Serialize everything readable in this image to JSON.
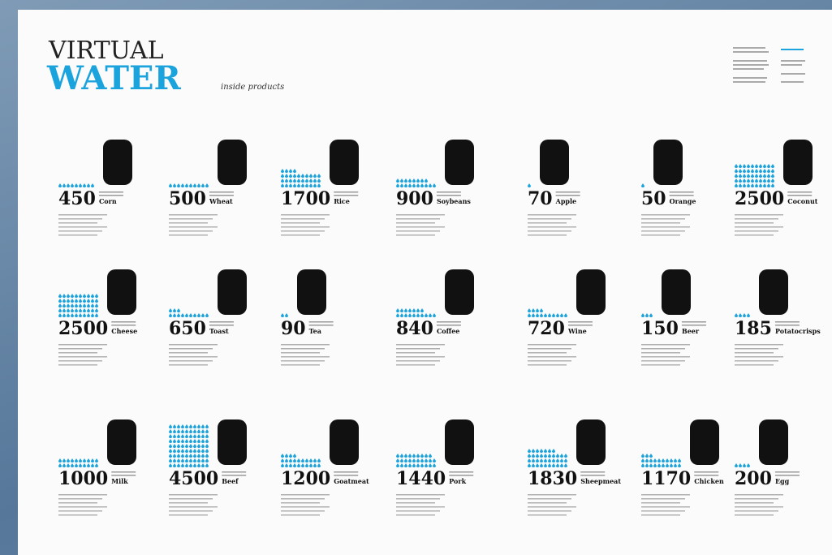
{
  "header": {
    "title_top": "VIRTUAL",
    "title_main": "WATER",
    "subtitle": "inside products"
  },
  "products": [
    {
      "name": "Corn",
      "value": 450
    },
    {
      "name": "Wheat",
      "value": 500
    },
    {
      "name": "Rice",
      "value": 1700
    },
    {
      "name": "Soybeans",
      "value": 900
    },
    {
      "name": "Apple",
      "value": 70
    },
    {
      "name": "Orange",
      "value": 50
    },
    {
      "name": "Coconut",
      "value": 2500
    },
    {
      "name": "Cheese",
      "value": 2500
    },
    {
      "name": "Toast",
      "value": 650
    },
    {
      "name": "Tea",
      "value": 90
    },
    {
      "name": "Coffee",
      "value": 840
    },
    {
      "name": "Wine",
      "value": 720
    },
    {
      "name": "Beer",
      "value": 150
    },
    {
      "name": "Potatocrisps",
      "value": 185
    },
    {
      "name": "Milk",
      "value": 1000
    },
    {
      "name": "Beef",
      "value": 4500
    },
    {
      "name": "Goatmeat",
      "value": 1200
    },
    {
      "name": "Pork",
      "value": 1440
    },
    {
      "name": "Sheepmeat",
      "value": 1830
    },
    {
      "name": "Chicken",
      "value": 1170
    },
    {
      "name": "Egg",
      "value": 200
    }
  ]
}
